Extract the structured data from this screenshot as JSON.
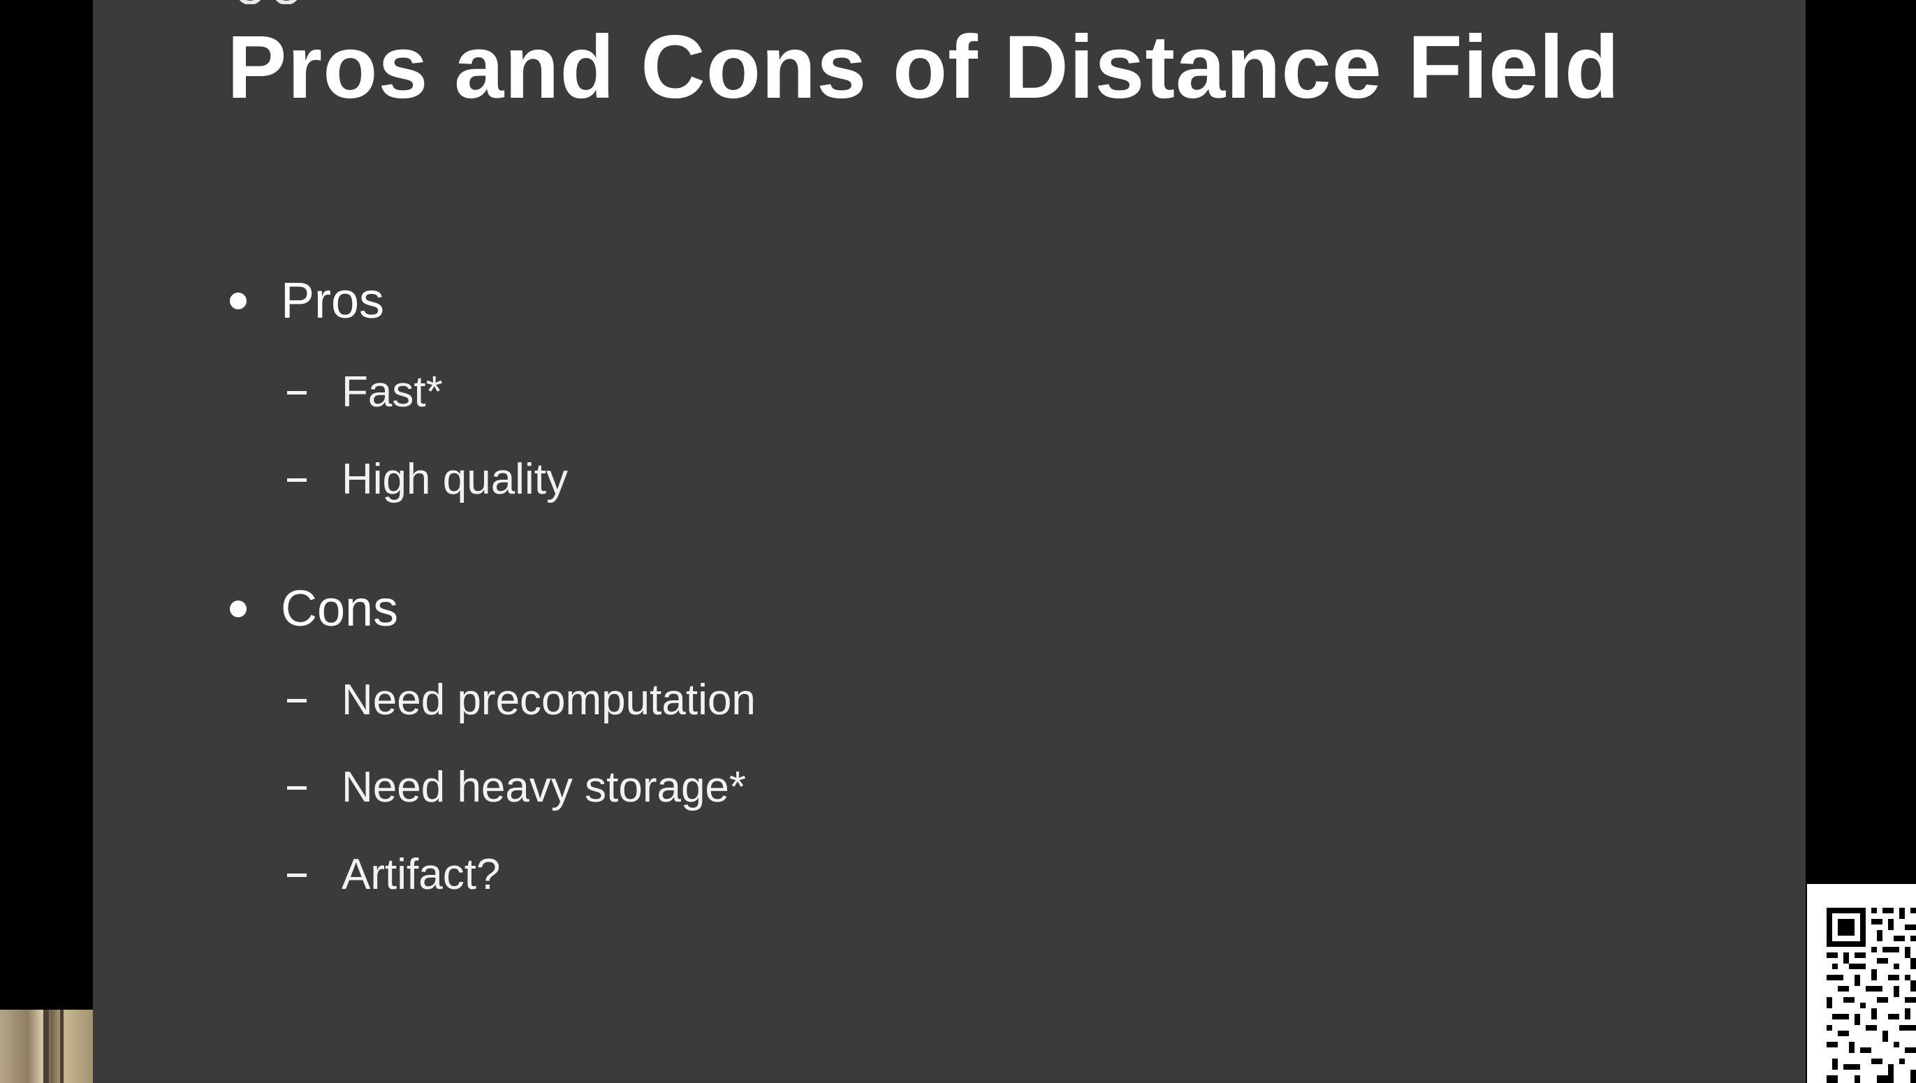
{
  "slide": {
    "title": "Pros and Cons of Distance Field",
    "sections": [
      {
        "heading": "Pros",
        "items": [
          "Fast*",
          "High quality"
        ]
      },
      {
        "heading": "Cons",
        "items": [
          "Need precomputation",
          "Need heavy storage*",
          "Artifact?"
        ]
      }
    ]
  },
  "colors": {
    "background": "#000000",
    "slide_background": "#3b3b3b",
    "text": "#ffffff"
  },
  "icons": {
    "qr": "qr-code-icon",
    "thumbnail": "video-thumbnail"
  }
}
